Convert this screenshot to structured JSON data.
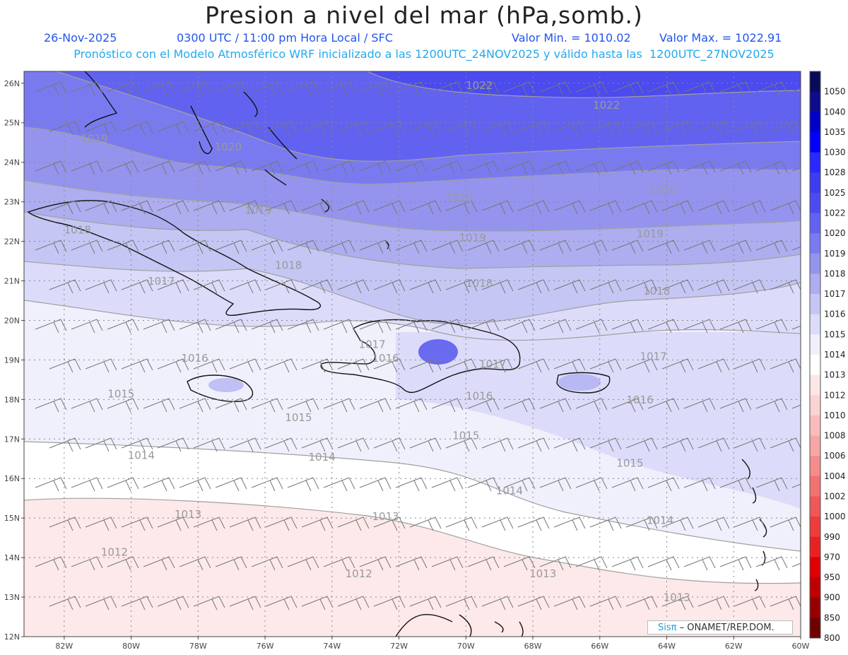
{
  "header": {
    "title": "Presion a nivel del mar (hPa,somb.)",
    "date": "26-Nov-2025",
    "time": "0300 UTC / 11:00 pm Hora Local / SFC",
    "min": "Valor Min. = 1010.02",
    "max": "Valor Max. = 1022.91",
    "model": "Pronóstico con el Modelo Atmosférico WRF inicializado a las 1200UTC_24NOV2025 y válido hasta las  1200UTC_27NOV2025"
  },
  "lat_labels": [
    "26N",
    "25N",
    "24N",
    "23N",
    "22N",
    "21N",
    "20N",
    "19N",
    "18N",
    "17N",
    "16N",
    "15N",
    "14N",
    "13N",
    "12N"
  ],
  "lon_labels": [
    "82W",
    "80W",
    "78W",
    "76W",
    "74W",
    "72W",
    "70W",
    "68W",
    "66W",
    "64W",
    "62W",
    "60W"
  ],
  "colorbar": {
    "labels": [
      "1050",
      "1040",
      "1035",
      "1030",
      "1028",
      "1025",
      "1022",
      "1020",
      "1019",
      "1018",
      "1017",
      "1016",
      "1015",
      "1014",
      "1013",
      "1012",
      "1010",
      "1008",
      "1006",
      "1004",
      "1002",
      "1000",
      "990",
      "970",
      "950",
      "900",
      "850",
      "800"
    ],
    "colors": [
      "#0a0a5a",
      "#0c0c8c",
      "#0000c8",
      "#0000ff",
      "#2828ff",
      "#3c3cf0",
      "#4b4bf0",
      "#6262f0",
      "#7a7af0",
      "#9494ee",
      "#adadf0",
      "#c6c6f5",
      "#dcdcfa",
      "#f0f0fd",
      "#ffffff",
      "#fde6e6",
      "#fbd3d3",
      "#f9bcbc",
      "#f7a6a6",
      "#f48c8c",
      "#f27272",
      "#ef5858",
      "#ec3c3c",
      "#e82222",
      "#e00000",
      "#c00000",
      "#980000",
      "#700000"
    ]
  },
  "contour_labels": [
    {
      "text": "1022",
      "lon": -69.6,
      "lat": 25.85
    },
    {
      "text": "1022",
      "lon": -65.8,
      "lat": 25.35
    },
    {
      "text": "1019",
      "lon": -81.1,
      "lat": 24.5
    },
    {
      "text": "1020",
      "lon": -77.1,
      "lat": 24.3
    },
    {
      "text": "1020",
      "lon": -70.2,
      "lat": 23.0
    },
    {
      "text": "1020",
      "lon": -64.1,
      "lat": 23.2
    },
    {
      "text": "1019",
      "lon": -76.2,
      "lat": 22.7
    },
    {
      "text": "1018",
      "lon": -81.6,
      "lat": 22.2
    },
    {
      "text": "1019",
      "lon": -69.8,
      "lat": 22.0
    },
    {
      "text": "1019",
      "lon": -64.5,
      "lat": 22.1
    },
    {
      "text": "1018",
      "lon": -75.3,
      "lat": 21.3
    },
    {
      "text": "1018",
      "lon": -69.6,
      "lat": 20.85
    },
    {
      "text": "1018",
      "lon": -64.3,
      "lat": 20.65
    },
    {
      "text": "1017",
      "lon": -79.1,
      "lat": 20.9
    },
    {
      "text": "1017",
      "lon": -72.8,
      "lat": 19.3
    },
    {
      "text": "1016",
      "lon": -72.4,
      "lat": 18.95
    },
    {
      "text": "1017",
      "lon": -69.2,
      "lat": 18.8
    },
    {
      "text": "1017",
      "lon": -64.4,
      "lat": 19.0
    },
    {
      "text": "1016",
      "lon": -78.1,
      "lat": 18.95
    },
    {
      "text": "1016",
      "lon": -69.6,
      "lat": 18.0
    },
    {
      "text": "1016",
      "lon": -64.8,
      "lat": 17.9
    },
    {
      "text": "1015",
      "lon": -80.3,
      "lat": 18.05
    },
    {
      "text": "1015",
      "lon": -75.0,
      "lat": 17.45
    },
    {
      "text": "1015",
      "lon": -70.0,
      "lat": 17.0
    },
    {
      "text": "1015",
      "lon": -65.1,
      "lat": 16.3
    },
    {
      "text": "1014",
      "lon": -79.7,
      "lat": 16.5
    },
    {
      "text": "1014",
      "lon": -74.3,
      "lat": 16.45
    },
    {
      "text": "1014",
      "lon": -68.7,
      "lat": 15.6
    },
    {
      "text": "1014",
      "lon": -64.2,
      "lat": 14.85
    },
    {
      "text": "1013",
      "lon": -78.3,
      "lat": 15.0
    },
    {
      "text": "1013",
      "lon": -72.4,
      "lat": 14.95
    },
    {
      "text": "1012",
      "lon": -80.5,
      "lat": 14.05
    },
    {
      "text": "1012",
      "lon": -73.2,
      "lat": 13.5
    },
    {
      "text": "1013",
      "lon": -67.7,
      "lat": 13.5
    },
    {
      "text": "1013",
      "lon": -63.7,
      "lat": 12.9
    }
  ],
  "credit": {
    "brand": "Sisπ",
    "rest": "– ONAMET/REP.DOM."
  }
}
